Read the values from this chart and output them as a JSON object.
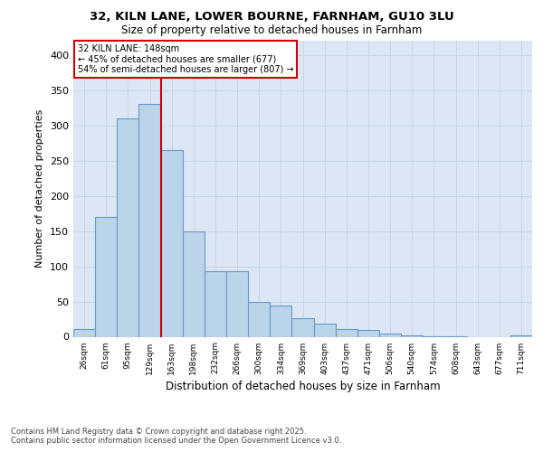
{
  "title_line1": "32, KILN LANE, LOWER BOURNE, FARNHAM, GU10 3LU",
  "title_line2": "Size of property relative to detached houses in Farnham",
  "xlabel": "Distribution of detached houses by size in Farnham",
  "ylabel": "Number of detached properties",
  "bin_labels": [
    "26sqm",
    "61sqm",
    "95sqm",
    "129sqm",
    "163sqm",
    "198sqm",
    "232sqm",
    "266sqm",
    "300sqm",
    "334sqm",
    "369sqm",
    "403sqm",
    "437sqm",
    "471sqm",
    "506sqm",
    "540sqm",
    "574sqm",
    "608sqm",
    "643sqm",
    "677sqm",
    "711sqm"
  ],
  "bar_values": [
    11,
    170,
    310,
    330,
    265,
    150,
    93,
    93,
    50,
    44,
    26,
    19,
    11,
    9,
    4,
    2,
    1,
    1,
    0,
    0,
    2
  ],
  "bar_color": "#bad4ea",
  "bar_edge_color": "#6699cc",
  "grid_color": "#c8d4e8",
  "background_color": "#dce6f5",
  "vline_x": 3.5,
  "vline_color": "#cc0000",
  "annotation_text": "32 KILN LANE: 148sqm\n← 45% of detached houses are smaller (677)\n54% of semi-detached houses are larger (807) →",
  "annotation_box_color": "#ffffff",
  "annotation_box_edge": "#cc0000",
  "footer_text": "Contains HM Land Registry data © Crown copyright and database right 2025.\nContains public sector information licensed under the Open Government Licence v3.0.",
  "ylim": [
    0,
    420
  ],
  "yticks": [
    0,
    50,
    100,
    150,
    200,
    250,
    300,
    350,
    400
  ]
}
